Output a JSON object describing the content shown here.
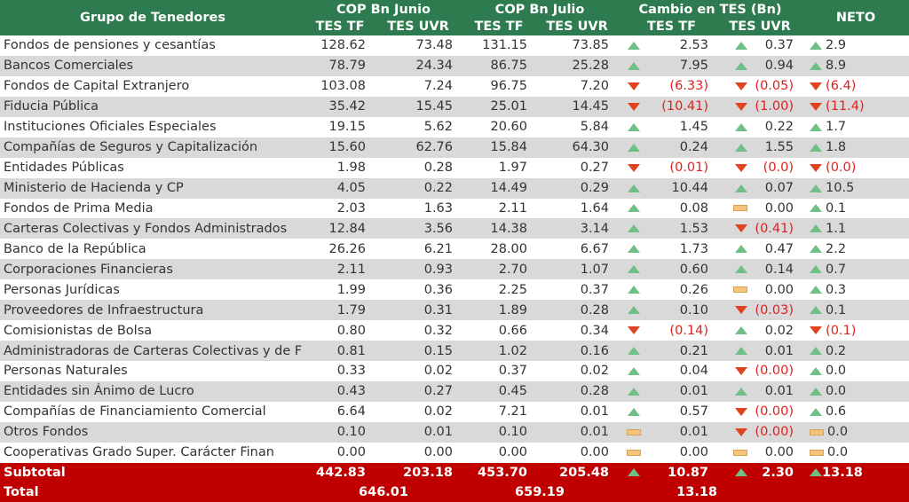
{
  "header": {
    "group": "Grupo de Tenedores",
    "junio": "COP Bn Junio",
    "julio": "COP Bn Julio",
    "cambio": "Cambio en TES (Bn)",
    "neto": "NETO",
    "tes_tf": "TES TF",
    "tes_uvr": "TES UVR"
  },
  "rows": [
    {
      "name": "Fondos de pensiones y cesantías",
      "jun_tf": "128.62",
      "jun_uvr": "73.48",
      "jul_tf": "131.15",
      "jul_uvr": "73.85",
      "tf_dir": "up",
      "tf_chg": "2.53",
      "uvr_dir": "up",
      "uvr_chg": "0.37",
      "neto_dir": "up",
      "neto": "2.9"
    },
    {
      "name": "Bancos Comerciales",
      "jun_tf": "78.79",
      "jun_uvr": "24.34",
      "jul_tf": "86.75",
      "jul_uvr": "25.28",
      "tf_dir": "up",
      "tf_chg": "7.95",
      "uvr_dir": "up",
      "uvr_chg": "0.94",
      "neto_dir": "up",
      "neto": "8.9"
    },
    {
      "name": "Fondos de Capital Extranjero",
      "jun_tf": "103.08",
      "jun_uvr": "7.24",
      "jul_tf": "96.75",
      "jul_uvr": "7.20",
      "tf_dir": "down",
      "tf_chg": "(6.33)",
      "uvr_dir": "down",
      "uvr_chg": "(0.05)",
      "neto_dir": "down",
      "neto": "(6.4)"
    },
    {
      "name": "Fiducia Pública",
      "jun_tf": "35.42",
      "jun_uvr": "15.45",
      "jul_tf": "25.01",
      "jul_uvr": "14.45",
      "tf_dir": "down",
      "tf_chg": "(10.41)",
      "uvr_dir": "down",
      "uvr_chg": "(1.00)",
      "neto_dir": "down",
      "neto": "(11.4)"
    },
    {
      "name": "Instituciones Oficiales Especiales",
      "jun_tf": "19.15",
      "jun_uvr": "5.62",
      "jul_tf": "20.60",
      "jul_uvr": "5.84",
      "tf_dir": "up",
      "tf_chg": "1.45",
      "uvr_dir": "up",
      "uvr_chg": "0.22",
      "neto_dir": "up",
      "neto": "1.7"
    },
    {
      "name": "Compañías de Seguros y Capitalización",
      "jun_tf": "15.60",
      "jun_uvr": "62.76",
      "jul_tf": "15.84",
      "jul_uvr": "64.30",
      "tf_dir": "up",
      "tf_chg": "0.24",
      "uvr_dir": "up",
      "uvr_chg": "1.55",
      "neto_dir": "up",
      "neto": "1.8"
    },
    {
      "name": "Entidades Públicas",
      "jun_tf": "1.98",
      "jun_uvr": "0.28",
      "jul_tf": "1.97",
      "jul_uvr": "0.27",
      "tf_dir": "down",
      "tf_chg": "(0.01)",
      "uvr_dir": "down",
      "uvr_chg": "(0.0)",
      "neto_dir": "down",
      "neto": "(0.0)"
    },
    {
      "name": "Ministerio de Hacienda y CP",
      "jun_tf": "4.05",
      "jun_uvr": "0.22",
      "jul_tf": "14.49",
      "jul_uvr": "0.29",
      "tf_dir": "up",
      "tf_chg": "10.44",
      "uvr_dir": "up",
      "uvr_chg": "0.07",
      "neto_dir": "up",
      "neto": "10.5"
    },
    {
      "name": "Fondos de Prima Media",
      "jun_tf": "2.03",
      "jun_uvr": "1.63",
      "jul_tf": "2.11",
      "jul_uvr": "1.64",
      "tf_dir": "up",
      "tf_chg": "0.08",
      "uvr_dir": "flat",
      "uvr_chg": "0.00",
      "neto_dir": "up",
      "neto": "0.1"
    },
    {
      "name": "Carteras Colectivas y Fondos Administrados",
      "jun_tf": "12.84",
      "jun_uvr": "3.56",
      "jul_tf": "14.38",
      "jul_uvr": "3.14",
      "tf_dir": "up",
      "tf_chg": "1.53",
      "uvr_dir": "down",
      "uvr_chg": "(0.41)",
      "neto_dir": "up",
      "neto": "1.1"
    },
    {
      "name": "Banco de la República",
      "jun_tf": "26.26",
      "jun_uvr": "6.21",
      "jul_tf": "28.00",
      "jul_uvr": "6.67",
      "tf_dir": "up",
      "tf_chg": "1.73",
      "uvr_dir": "up",
      "uvr_chg": "0.47",
      "neto_dir": "up",
      "neto": "2.2"
    },
    {
      "name": "Corporaciones Financieras",
      "jun_tf": "2.11",
      "jun_uvr": "0.93",
      "jul_tf": "2.70",
      "jul_uvr": "1.07",
      "tf_dir": "up",
      "tf_chg": "0.60",
      "uvr_dir": "up",
      "uvr_chg": "0.14",
      "neto_dir": "up",
      "neto": "0.7"
    },
    {
      "name": "Personas Jurídicas",
      "jun_tf": "1.99",
      "jun_uvr": "0.36",
      "jul_tf": "2.25",
      "jul_uvr": "0.37",
      "tf_dir": "up",
      "tf_chg": "0.26",
      "uvr_dir": "flat",
      "uvr_chg": "0.00",
      "neto_dir": "up",
      "neto": "0.3"
    },
    {
      "name": "Proveedores de Infraestructura",
      "jun_tf": "1.79",
      "jun_uvr": "0.31",
      "jul_tf": "1.89",
      "jul_uvr": "0.28",
      "tf_dir": "up",
      "tf_chg": "0.10",
      "uvr_dir": "down",
      "uvr_chg": "(0.03)",
      "neto_dir": "up",
      "neto": "0.1"
    },
    {
      "name": "Comisionistas de Bolsa",
      "jun_tf": "0.80",
      "jun_uvr": "0.32",
      "jul_tf": "0.66",
      "jul_uvr": "0.34",
      "tf_dir": "down",
      "tf_chg": "(0.14)",
      "uvr_dir": "up",
      "uvr_chg": "0.02",
      "neto_dir": "down",
      "neto": "(0.1)"
    },
    {
      "name": "Administradoras de Carteras Colectivas y de F",
      "jun_tf": "0.81",
      "jun_uvr": "0.15",
      "jul_tf": "1.02",
      "jul_uvr": "0.16",
      "tf_dir": "up",
      "tf_chg": "0.21",
      "uvr_dir": "up",
      "uvr_chg": "0.01",
      "neto_dir": "up",
      "neto": "0.2"
    },
    {
      "name": "Personas Naturales",
      "jun_tf": "0.33",
      "jun_uvr": "0.02",
      "jul_tf": "0.37",
      "jul_uvr": "0.02",
      "tf_dir": "up",
      "tf_chg": "0.04",
      "uvr_dir": "down",
      "uvr_chg": "(0.00)",
      "neto_dir": "up",
      "neto": "0.0"
    },
    {
      "name": "Entidades sin Ánimo de Lucro",
      "jun_tf": "0.43",
      "jun_uvr": "0.27",
      "jul_tf": "0.45",
      "jul_uvr": "0.28",
      "tf_dir": "up",
      "tf_chg": "0.01",
      "uvr_dir": "up",
      "uvr_chg": "0.01",
      "neto_dir": "up",
      "neto": "0.0"
    },
    {
      "name": "Compañías de Financiamiento Comercial",
      "jun_tf": "6.64",
      "jun_uvr": "0.02",
      "jul_tf": "7.21",
      "jul_uvr": "0.01",
      "tf_dir": "up",
      "tf_chg": "0.57",
      "uvr_dir": "down",
      "uvr_chg": "(0.00)",
      "neto_dir": "up",
      "neto": "0.6"
    },
    {
      "name": "Otros Fondos",
      "jun_tf": "0.10",
      "jun_uvr": "0.01",
      "jul_tf": "0.10",
      "jul_uvr": "0.01",
      "tf_dir": "flat",
      "tf_chg": "0.01",
      "uvr_dir": "down",
      "uvr_chg": "(0.00)",
      "neto_dir": "flat",
      "neto": "0.0"
    },
    {
      "name": "Cooperativas Grado Super. Carácter Finan",
      "jun_tf": "0.00",
      "jun_uvr": "0.00",
      "jul_tf": "0.00",
      "jul_uvr": "0.00",
      "tf_dir": "flat",
      "tf_chg": "0.00",
      "uvr_dir": "flat",
      "uvr_chg": "0.00",
      "neto_dir": "flat",
      "neto": "0.0"
    }
  ],
  "subtotal": {
    "label": "Subtotal",
    "jun_tf": "442.83",
    "jun_uvr": "203.18",
    "jul_tf": "453.70",
    "jul_uvr": "205.48",
    "tf_dir": "up",
    "tf_chg": "10.87",
    "uvr_dir": "up",
    "uvr_chg": "2.30",
    "neto_dir": "up",
    "neto": "13.18"
  },
  "total": {
    "label": "Total",
    "junio": "646.01",
    "julio": "659.19",
    "cambio": "13.18"
  },
  "colors": {
    "header_bg": "#2e7b50",
    "total_bg": "#c00000",
    "up": "#6fbf87",
    "down": "#e0431f",
    "flat": "#f3c57c",
    "negative_text": "#e0211e"
  }
}
